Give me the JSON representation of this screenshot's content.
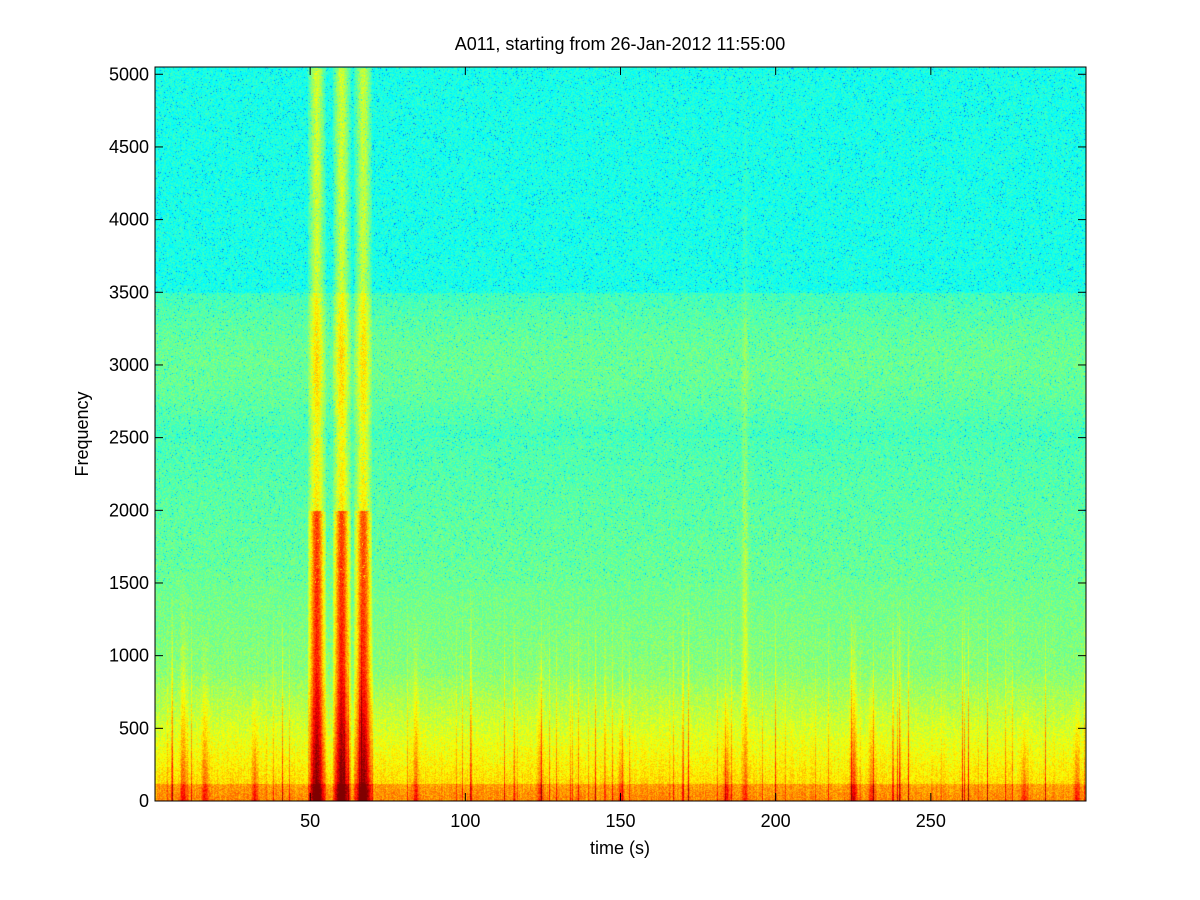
{
  "chart_data": {
    "type": "heatmap",
    "title": "A011, starting from 26-Jan-2012 11:55:00",
    "xlabel": "time (s)",
    "ylabel": "Frequency",
    "xlim": [
      0,
      300
    ],
    "ylim": [
      0,
      5050
    ],
    "x_ticks": [
      50,
      100,
      150,
      200,
      250
    ],
    "y_ticks": [
      0,
      500,
      1000,
      1500,
      2000,
      2500,
      3000,
      3500,
      4000,
      4500,
      5000
    ],
    "colormap": "jet",
    "grid": false,
    "background_level": "cyan at high frequencies, green in the 2500-3500 band, yellow below about 700",
    "bursts": [
      {
        "t": 52,
        "f_max": 5050,
        "intensity": 1.0
      },
      {
        "t": 60,
        "f_max": 5050,
        "intensity": 1.0
      },
      {
        "t": 67,
        "f_max": 5050,
        "intensity": 0.95
      },
      {
        "t": 9,
        "f_max": 1600,
        "intensity": 0.6
      },
      {
        "t": 16,
        "f_max": 1200,
        "intensity": 0.55
      },
      {
        "t": 32,
        "f_max": 900,
        "intensity": 0.5
      },
      {
        "t": 84,
        "f_max": 1300,
        "intensity": 0.5
      },
      {
        "t": 124,
        "f_max": 1200,
        "intensity": 0.45
      },
      {
        "t": 150,
        "f_max": 700,
        "intensity": 0.4
      },
      {
        "t": 184,
        "f_max": 900,
        "intensity": 0.55
      },
      {
        "t": 190,
        "f_max": 5050,
        "intensity": 0.45
      },
      {
        "t": 225,
        "f_max": 1400,
        "intensity": 0.75
      },
      {
        "t": 231,
        "f_max": 1000,
        "intensity": 0.5
      },
      {
        "t": 280,
        "f_max": 700,
        "intensity": 0.45
      },
      {
        "t": 297,
        "f_max": 800,
        "intensity": 0.5
      }
    ]
  }
}
